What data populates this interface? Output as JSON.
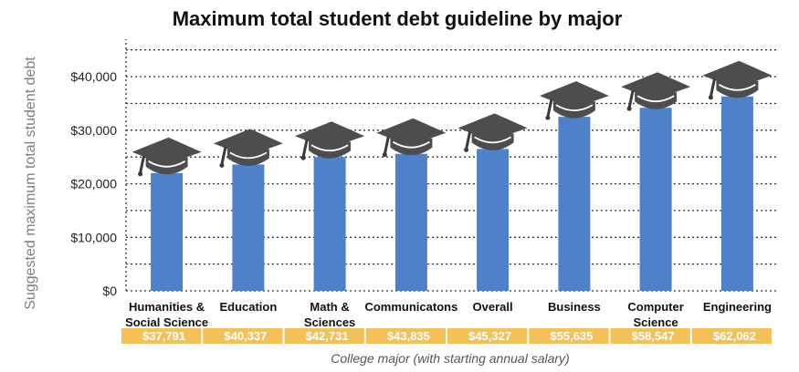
{
  "chart_data": {
    "type": "bar",
    "title": "Maximum total student debt guideline by major",
    "ylabel": "Suggested maximum total student debt",
    "xlabel": "College major (with starting annual salary)",
    "ylim": [
      0,
      47000
    ],
    "yticks": [
      0,
      10000,
      20000,
      30000,
      40000
    ],
    "ytick_labels": [
      "$0",
      "$10,000",
      "$20,000",
      "$30,000",
      "$40,000"
    ],
    "grid": true,
    "categories": [
      [
        "Humanities &",
        "Social Science"
      ],
      [
        "Education"
      ],
      [
        "Math &",
        "Sciences"
      ],
      [
        "Communicatons"
      ],
      [
        "Overall"
      ],
      [
        "Business"
      ],
      [
        "Computer",
        "Science"
      ],
      [
        "Engineering"
      ]
    ],
    "values": [
      22000,
      23600,
      25000,
      25600,
      26500,
      32500,
      34200,
      36300
    ],
    "salaries": [
      "$37,791",
      "$40,337",
      "$42,731",
      "$43,835",
      "$45,327",
      "$55,635",
      "$58,547",
      "$62,062"
    ],
    "colors": {
      "bar": "#4F81CA",
      "cap": "#4D4D4D",
      "tassel": "#3A3A3A",
      "salary_band": "#F3C158",
      "grid": "#333333"
    },
    "mark_icon": "graduation-cap-icon"
  }
}
